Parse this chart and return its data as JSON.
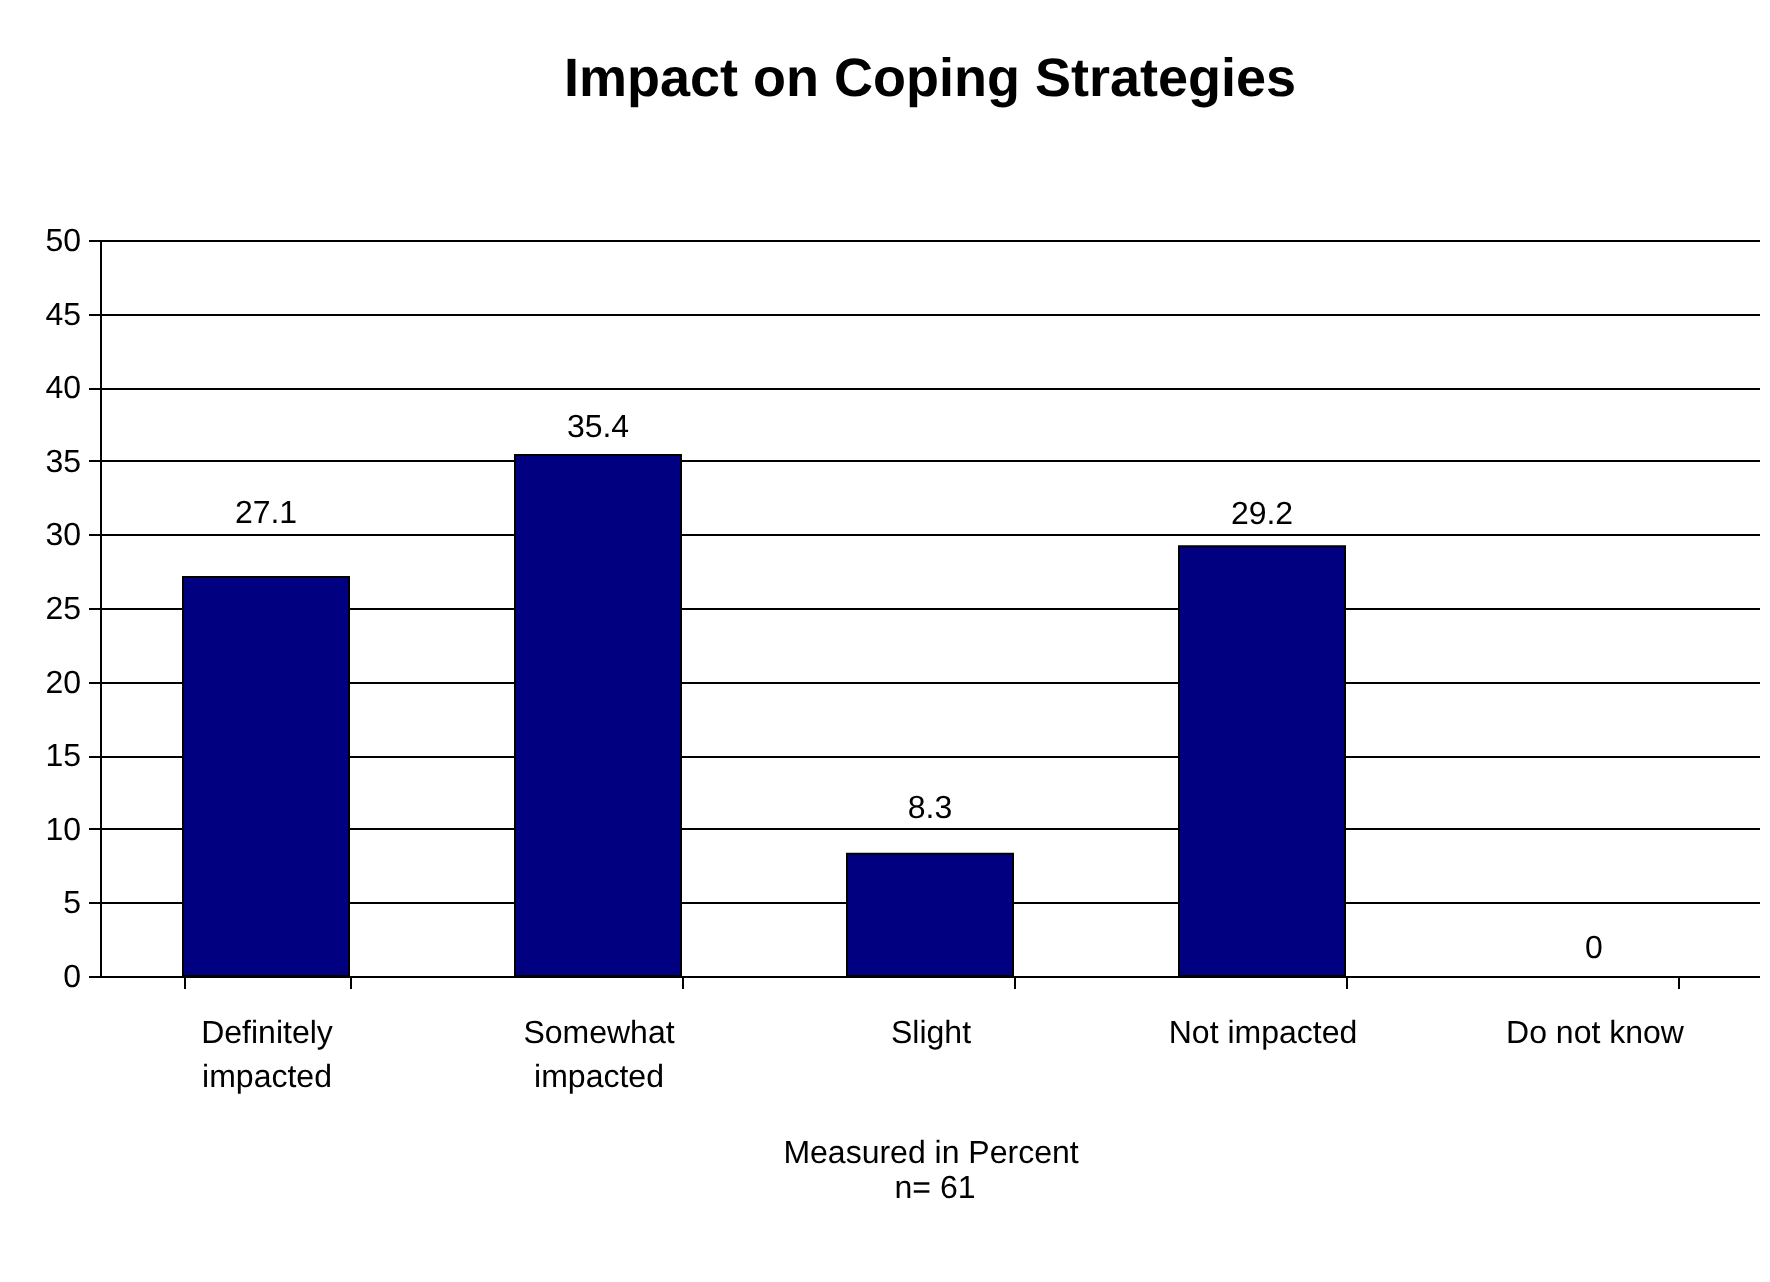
{
  "chart_data": {
    "type": "bar",
    "title": "Impact on Coping Strategies",
    "xlabel": "Measured in Percent",
    "annotations": [
      "n= 61"
    ],
    "categories": [
      "Definitely impacted",
      "Somewhat impacted",
      "Slight",
      "Not impacted",
      "Do not know"
    ],
    "values": [
      27.1,
      35.4,
      8.3,
      29.2,
      0
    ],
    "color": "#000080",
    "ylim": [
      0,
      50
    ],
    "yticks": [
      0,
      5,
      10,
      15,
      20,
      25,
      30,
      35,
      40,
      45,
      50
    ],
    "grid": "y",
    "data_labels": true
  }
}
